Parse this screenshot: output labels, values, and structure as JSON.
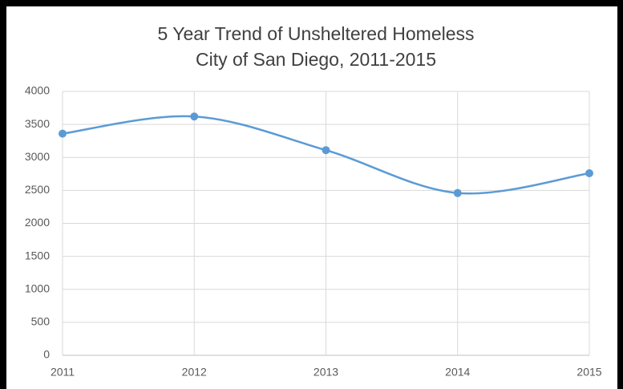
{
  "chart_data": {
    "type": "line",
    "title": "5 Year Trend of Unsheltered Homeless",
    "subtitle": "City of San Diego, 2011-2015",
    "x": [
      2011,
      2012,
      2013,
      2014,
      2015
    ],
    "xlim": [
      2011,
      2015
    ],
    "xticks": [
      2011,
      2012,
      2013,
      2014,
      2015
    ],
    "series": [
      {
        "color": "#5b9bd5",
        "values": [
          3360,
          3620,
          3110,
          2460,
          2760
        ]
      }
    ],
    "ylim": [
      0,
      4000
    ],
    "yticks": [
      0,
      500,
      1000,
      1500,
      2000,
      2500,
      3000,
      3500,
      4000
    ],
    "grid": true,
    "smooth": true
  }
}
